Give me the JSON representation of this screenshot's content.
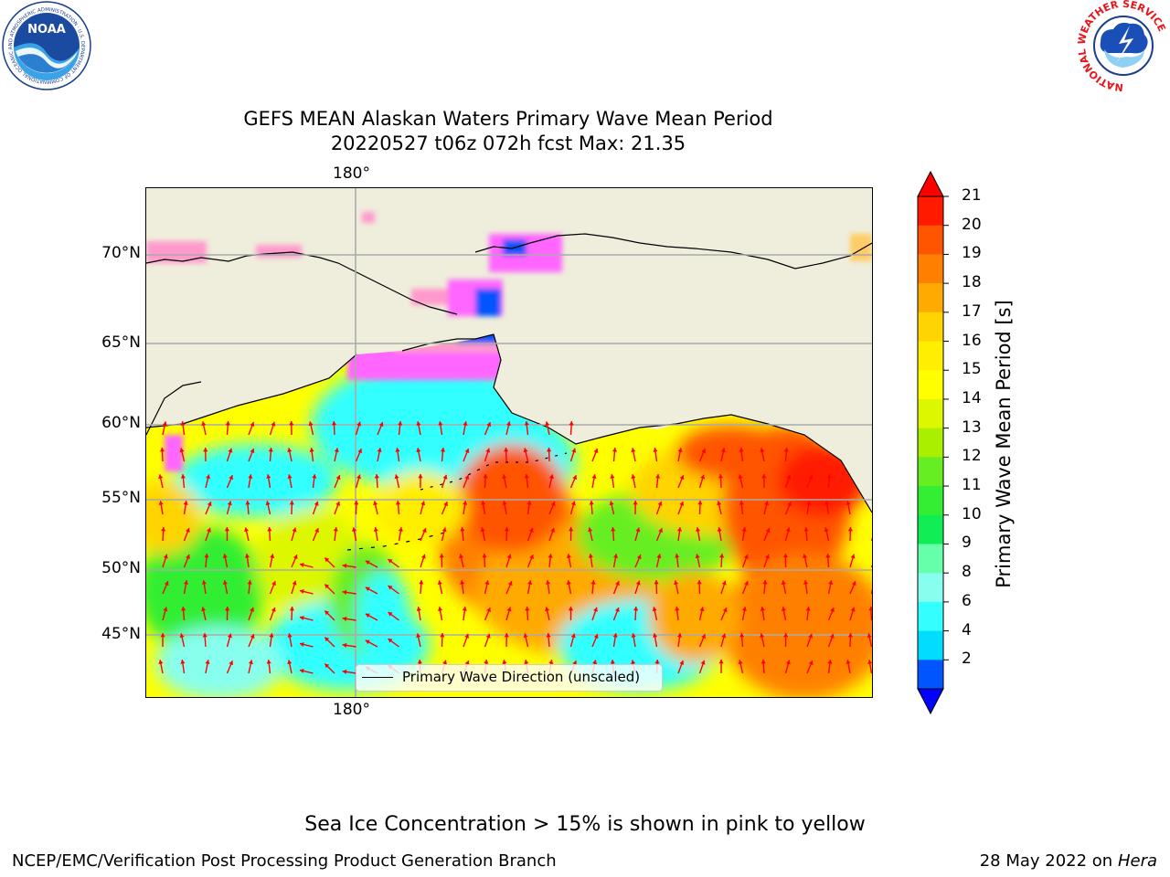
{
  "header": {
    "title_line1": "GEFS MEAN Alaskan Waters Primary Wave Mean Period",
    "title_line2": "20220527 t06z 072h fcst   Max: 21.35"
  },
  "map": {
    "lon_label_top": "180°",
    "lon_label_bottom": "180°",
    "lat_labels": [
      "70°N",
      "65°N",
      "60°N",
      "55°N",
      "50°N",
      "45°N"
    ],
    "legend_label": "Primary Wave Direction (unscaled)",
    "land_color": "#efeedc",
    "arrow_color": "#ff0000",
    "ice_colors": [
      "#ff66ff",
      "#ff99cc",
      "#ffcc66"
    ]
  },
  "colorbar": {
    "label": "Primary Wave Mean Period [s]",
    "ticks": [
      "21",
      "20",
      "19",
      "18",
      "17",
      "16",
      "15",
      "14",
      "13",
      "12",
      "11",
      "10",
      "9",
      "8",
      "6",
      "4",
      "2"
    ],
    "colors": [
      "#ff1a00",
      "#ff5500",
      "#ff8000",
      "#ffaa00",
      "#ffd400",
      "#ffee00",
      "#ffff00",
      "#ddf700",
      "#aaee00",
      "#66ee22",
      "#33ee33",
      "#11ee55",
      "#66ffaa",
      "#88ffee",
      "#33ffff",
      "#00ddff",
      "#0055ff"
    ],
    "under_color": "#0000ff",
    "over_color": "#ff0000"
  },
  "footer": {
    "ice_note": "Sea Ice Concentration > 15% is shown in pink to yellow",
    "credit": "NCEP/EMC/Verification Post Processing Product Generation Branch",
    "date": "28 May 2022 on",
    "machine": "Hera"
  },
  "logos": {
    "noaa_text": "NOAA",
    "noaa_ring": "NATIONAL OCEANIC AND ATMOSPHERIC ADMINISTRATION · U.S. DEPARTMENT OF COMMERCE ·",
    "nws_ring": "NATIONAL WEATHER SERVICE"
  }
}
